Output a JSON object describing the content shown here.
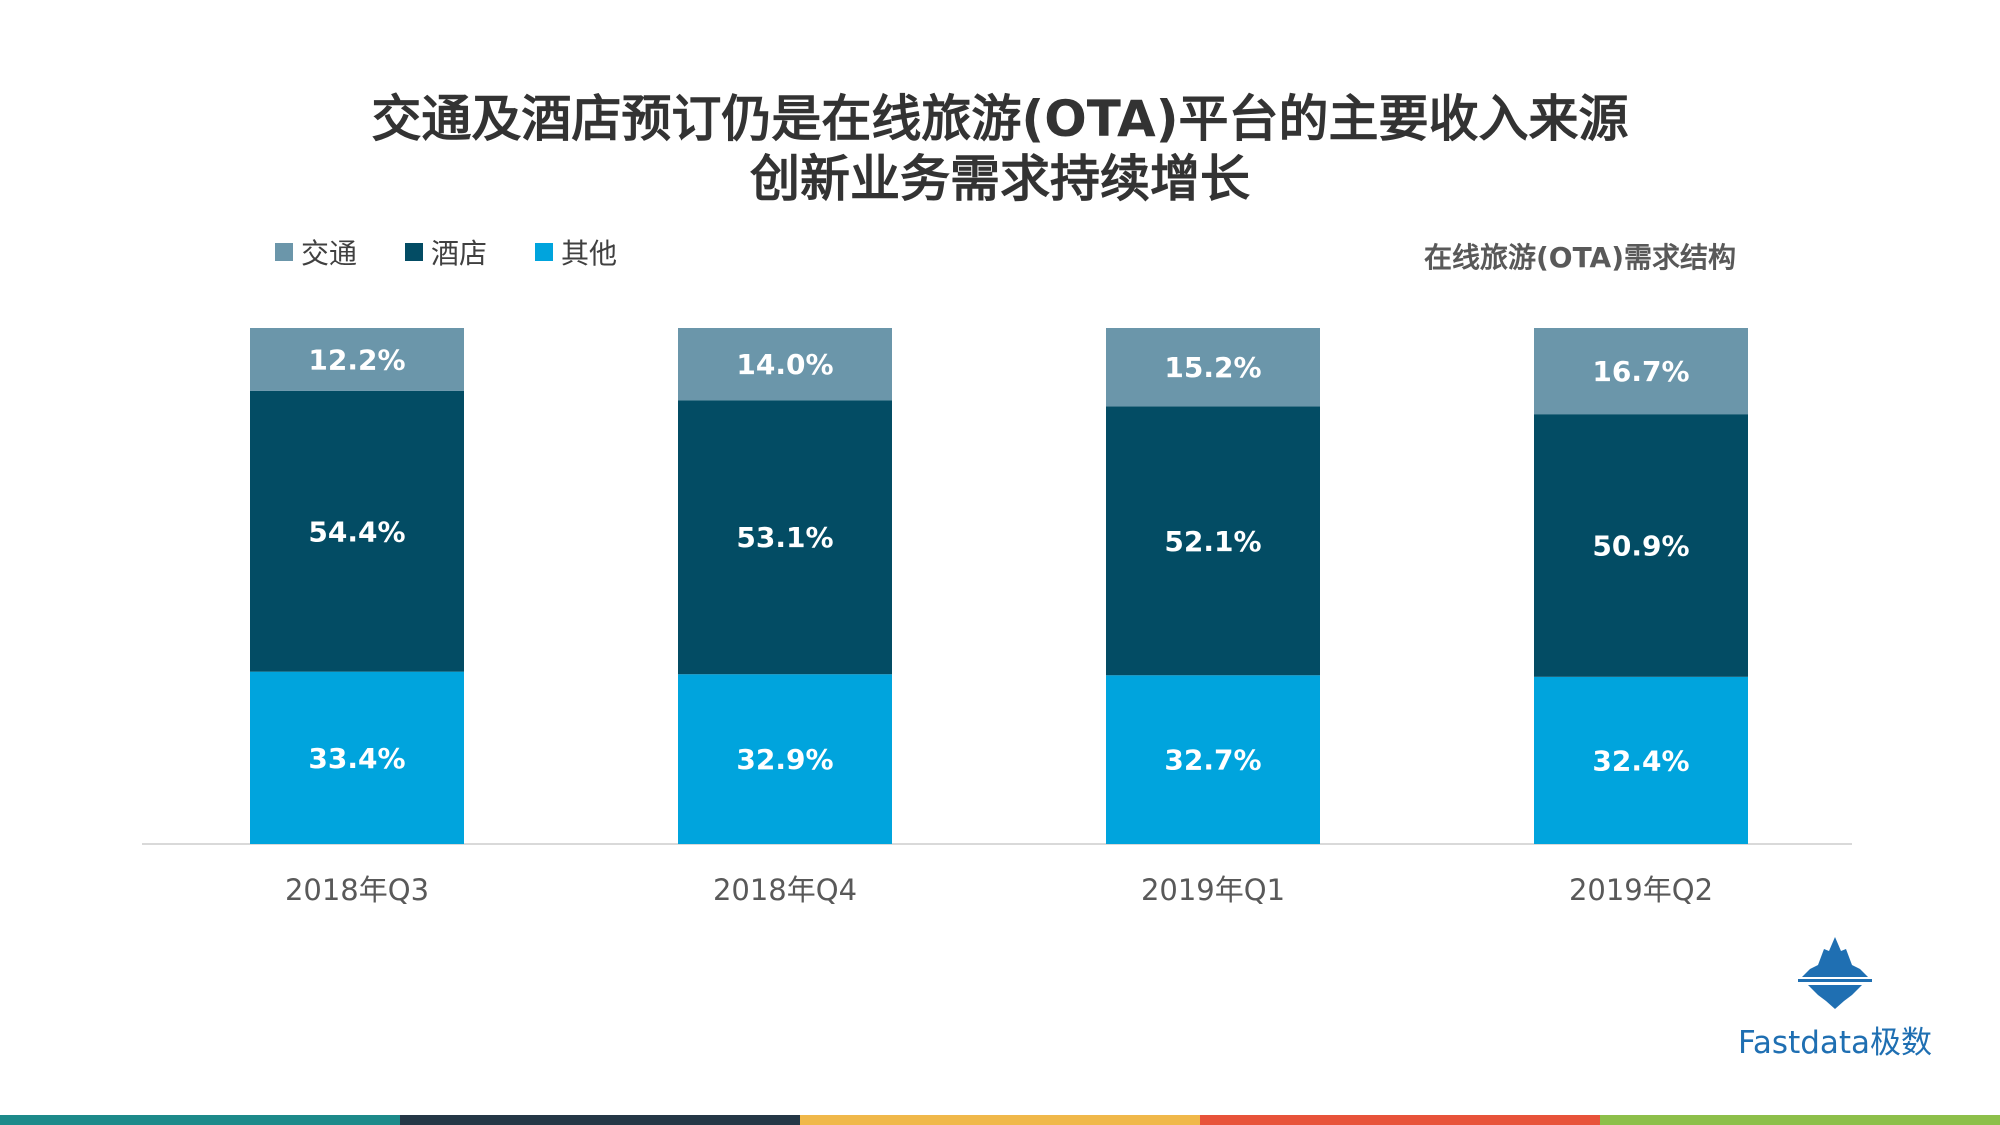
{
  "title": {
    "line1": "交通及酒店预订仍是在线旅游(OTA)平台的主要收入来源",
    "line2": "创新业务需求持续增长"
  },
  "subtitle": "在线旅游(OTA)需求结构",
  "logo": {
    "text": "Fastdata极数"
  },
  "colors": {
    "traffic": "#6b96aa",
    "hotel": "#034c64",
    "other": "#00a4dd",
    "axis": "#d9d9d9",
    "footer": [
      "#1d8a8a",
      "#243746",
      "#f0b84a",
      "#e8533a",
      "#8dbf4a"
    ]
  },
  "chart_data": {
    "type": "bar",
    "stacked": true,
    "categories": [
      "2018年Q3",
      "2018年Q4",
      "2019年Q1",
      "2019年Q2"
    ],
    "series": [
      {
        "name": "其他",
        "key": "other",
        "values": [
          33.4,
          32.9,
          32.7,
          32.4
        ],
        "labels": [
          "33.4%",
          "32.9%",
          "32.7%",
          "32.4%"
        ]
      },
      {
        "name": "酒店",
        "key": "hotel",
        "values": [
          54.4,
          53.1,
          52.1,
          50.9
        ],
        "labels": [
          "54.4%",
          "53.1%",
          "52.1%",
          "50.9%"
        ]
      },
      {
        "name": "交通",
        "key": "traffic",
        "values": [
          12.2,
          14.0,
          15.2,
          16.7
        ],
        "labels": [
          "12.2%",
          "14.0%",
          "15.2%",
          "16.7%"
        ]
      }
    ],
    "legend": [
      {
        "name": "交通",
        "key": "traffic"
      },
      {
        "name": "酒店",
        "key": "hotel"
      },
      {
        "name": "其他",
        "key": "other"
      }
    ],
    "ylim": [
      0,
      100
    ],
    "unit": "%",
    "legend_position": "top-left",
    "grid": false
  }
}
